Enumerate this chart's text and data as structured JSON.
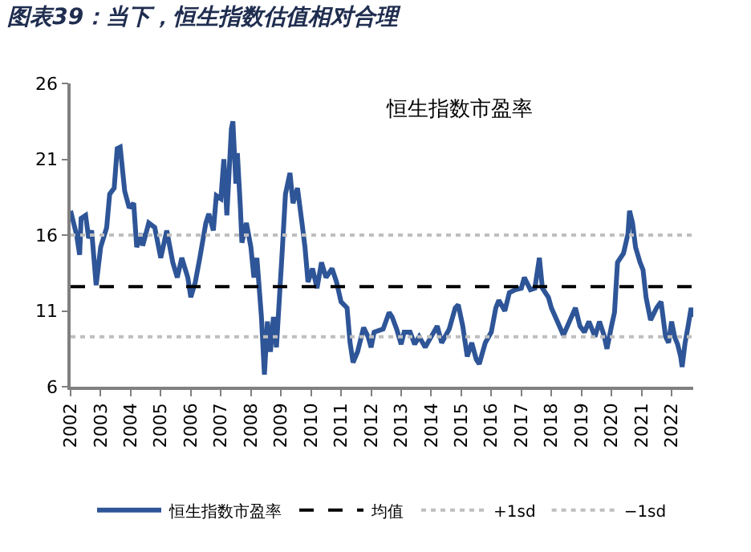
{
  "chart_data": {
    "type": "line",
    "title": "图表39：当下，恒生指数估值相对合理",
    "annotations": [
      "恒生指数市盈率"
    ],
    "xlim": [
      2002,
      2022.72
    ],
    "xticks": [
      2002,
      2003,
      2004,
      2005,
      2006,
      2007,
      2008,
      2009,
      2010,
      2011,
      2012,
      2013,
      2014,
      2015,
      2016,
      2017,
      2018,
      2019,
      2020,
      2021,
      2022
    ],
    "ylim": [
      6,
      26
    ],
    "yticks": [
      6,
      11,
      16,
      21,
      26
    ],
    "legend": "bottom",
    "marker": "none",
    "series": [
      {
        "name": "恒生指数市盈率",
        "color": "#2e5597",
        "line_style": "solid",
        "x": [
          2002.0,
          2002.1,
          2002.2,
          2002.3,
          2002.35,
          2002.5,
          2002.6,
          2002.7,
          2002.85,
          2003.0,
          2003.2,
          2003.3,
          2003.45,
          2003.55,
          2003.65,
          2003.8,
          2003.95,
          2004.1,
          2004.2,
          2004.35,
          2004.4,
          2004.6,
          2004.8,
          2005.0,
          2005.2,
          2005.4,
          2005.55,
          2005.7,
          2005.9,
          2006.0,
          2006.15,
          2006.3,
          2006.5,
          2006.6,
          2006.75,
          2006.85,
          2007.0,
          2007.1,
          2007.2,
          2007.35,
          2007.4,
          2007.5,
          2007.55,
          2007.65,
          2007.7,
          2007.85,
          2008.0,
          2008.1,
          2008.2,
          2008.35,
          2008.45,
          2008.55,
          2008.65,
          2008.75,
          2008.85,
          2008.95,
          2009.05,
          2009.15,
          2009.3,
          2009.4,
          2009.55,
          2009.7,
          2009.8,
          2009.9,
          2010.05,
          2010.2,
          2010.35,
          2010.5,
          2010.7,
          2010.85,
          2011.0,
          2011.2,
          2011.3,
          2011.4,
          2011.55,
          2011.75,
          2011.9,
          2012.0,
          2012.1,
          2012.4,
          2012.6,
          2012.7,
          2012.85,
          2013.0,
          2013.1,
          2013.3,
          2013.45,
          2013.6,
          2013.8,
          2014.0,
          2014.2,
          2014.35,
          2014.6,
          2014.8,
          2014.9,
          2015.05,
          2015.2,
          2015.35,
          2015.5,
          2015.6,
          2015.8,
          2016.0,
          2016.15,
          2016.25,
          2016.45,
          2016.6,
          2016.8,
          2017.0,
          2017.1,
          2017.3,
          2017.45,
          2017.6,
          2017.7,
          2017.9,
          2018.0,
          2018.2,
          2018.4,
          2018.6,
          2018.8,
          2018.95,
          2019.1,
          2019.25,
          2019.45,
          2019.6,
          2019.75,
          2019.85,
          2020.0,
          2020.1,
          2020.2,
          2020.4,
          2020.55,
          2020.6,
          2020.7,
          2020.8,
          2020.95,
          2021.05,
          2021.15,
          2021.3,
          2021.5,
          2021.65,
          2021.8,
          2021.9,
          2022.0,
          2022.1,
          2022.2,
          2022.3,
          2022.35,
          2022.45,
          2022.55,
          2022.65,
          2022.7
        ],
        "values": [
          17.6,
          16.8,
          16.0,
          14.7,
          17.1,
          17.3,
          15.8,
          16.3,
          12.7,
          15.2,
          16.5,
          18.7,
          19.1,
          21.7,
          21.8,
          18.9,
          17.8,
          18.1,
          15.2,
          16.1,
          15.3,
          16.8,
          16.5,
          14.5,
          16.3,
          14.2,
          13.2,
          14.5,
          13.2,
          11.9,
          12.9,
          14.5,
          16.8,
          17.4,
          16.3,
          18.6,
          18.4,
          21.0,
          17.3,
          23.0,
          23.5,
          19.4,
          21.4,
          17.8,
          15.5,
          16.8,
          15.2,
          13.2,
          14.5,
          10.6,
          6.8,
          10.3,
          8.3,
          10.6,
          8.6,
          11.9,
          15.2,
          18.7,
          20.1,
          18.1,
          19.1,
          16.8,
          15.2,
          12.9,
          13.8,
          12.5,
          14.2,
          13.2,
          13.8,
          12.9,
          11.6,
          11.2,
          8.9,
          7.6,
          8.3,
          9.9,
          9.3,
          8.6,
          9.6,
          9.8,
          10.9,
          10.6,
          9.8,
          8.8,
          9.6,
          9.6,
          8.8,
          9.3,
          8.6,
          9.3,
          10.0,
          8.9,
          9.8,
          11.2,
          11.4,
          10.0,
          8.0,
          8.9,
          7.8,
          7.5,
          8.9,
          9.6,
          11.2,
          11.7,
          11.0,
          12.2,
          12.4,
          12.5,
          13.2,
          12.4,
          12.5,
          14.5,
          12.5,
          11.9,
          11.2,
          10.3,
          9.4,
          10.3,
          11.2,
          10.0,
          9.6,
          10.3,
          9.3,
          10.3,
          9.4,
          8.5,
          10.0,
          10.9,
          14.2,
          14.8,
          16.1,
          17.6,
          16.8,
          15.2,
          14.2,
          13.7,
          11.9,
          10.4,
          11.2,
          11.6,
          9.3,
          8.9,
          10.3,
          9.3,
          8.8,
          8.0,
          7.3,
          8.9,
          10.0,
          11.2,
          10.6
        ]
      },
      {
        "name": "均值",
        "color": "#000000",
        "line_style": "dashed",
        "x": [
          2002,
          2022.72
        ],
        "values": [
          12.6,
          12.6
        ]
      },
      {
        "name": "+1sd",
        "color": "#bfbfbf",
        "line_style": "dotted",
        "x": [
          2002,
          2022.72
        ],
        "values": [
          16.0,
          16.0
        ]
      },
      {
        "name": "−1sd",
        "color": "#bfbfbf",
        "line_style": "dotted",
        "x": [
          2002,
          2022.72
        ],
        "values": [
          9.3,
          9.3
        ]
      }
    ]
  }
}
